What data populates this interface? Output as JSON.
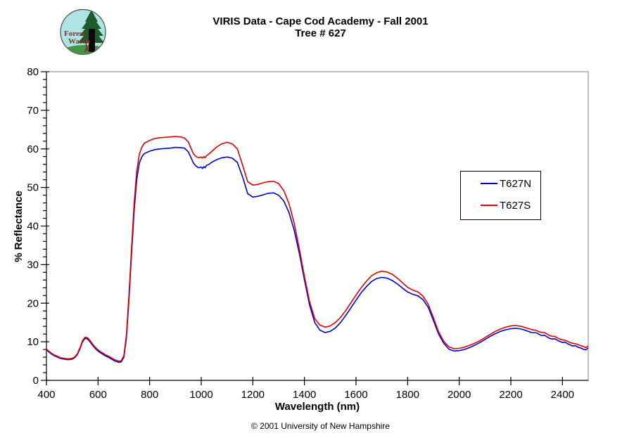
{
  "header": {
    "title_line1": "VIRIS Data - Cape Cod Academy - Fall 2001",
    "title_line2": "Tree # 627"
  },
  "logo": {
    "text_line1": "Forest",
    "text_line2": "Watch",
    "bg_color": "#aee4e4",
    "tree_color": "#1e5b2d",
    "trunk_color": "#0a0a0a",
    "ground_color": "#49924a",
    "text_color": "#8b3222"
  },
  "footer": {
    "copyright": "© 2001 University of New Hampshire"
  },
  "chart_data": {
    "type": "line",
    "title": "VIRIS Data - Cape Cod Academy - Fall 2001 / Tree # 627",
    "xlabel": "Wavelength (nm)",
    "ylabel": "% Reflectance",
    "xlim": [
      400,
      2500
    ],
    "ylim": [
      0,
      80
    ],
    "x_ticks": [
      400,
      600,
      800,
      1000,
      1200,
      1400,
      1600,
      1800,
      2000,
      2200,
      2400
    ],
    "y_ticks": [
      0,
      10,
      20,
      30,
      40,
      50,
      60,
      70,
      80
    ],
    "y_minor_step": 2,
    "grid": false,
    "legend_position": "right-middle",
    "frame_color": "#808080",
    "axis_color": "#000000",
    "x": [
      400,
      410,
      420,
      430,
      440,
      450,
      460,
      470,
      480,
      490,
      500,
      510,
      520,
      530,
      540,
      550,
      560,
      570,
      580,
      590,
      600,
      610,
      620,
      630,
      640,
      650,
      660,
      670,
      680,
      690,
      700,
      710,
      720,
      730,
      740,
      750,
      760,
      770,
      780,
      800,
      820,
      840,
      860,
      880,
      900,
      920,
      935,
      950,
      960,
      970,
      980,
      990,
      1000,
      1005,
      1010,
      1015,
      1020,
      1030,
      1040,
      1060,
      1080,
      1100,
      1120,
      1140,
      1160,
      1180,
      1200,
      1220,
      1240,
      1260,
      1280,
      1300,
      1320,
      1340,
      1360,
      1380,
      1400,
      1420,
      1440,
      1460,
      1480,
      1500,
      1520,
      1540,
      1560,
      1580,
      1600,
      1620,
      1640,
      1660,
      1680,
      1700,
      1720,
      1740,
      1760,
      1780,
      1800,
      1820,
      1840,
      1860,
      1880,
      1900,
      1920,
      1940,
      1960,
      1980,
      2000,
      2020,
      2040,
      2060,
      2080,
      2100,
      2120,
      2140,
      2160,
      2180,
      2200,
      2220,
      2240,
      2260,
      2280,
      2300,
      2310,
      2320,
      2330,
      2340,
      2350,
      2360,
      2370,
      2380,
      2390,
      2400,
      2410,
      2420,
      2430,
      2440,
      2450,
      2460,
      2470,
      2480,
      2490,
      2500
    ],
    "series": [
      {
        "name": "T627N",
        "color": "#0000cc",
        "values": [
          7.9,
          7.3,
          6.8,
          6.4,
          6.1,
          5.8,
          5.6,
          5.5,
          5.4,
          5.4,
          5.5,
          5.9,
          6.7,
          8.2,
          10.0,
          10.9,
          10.7,
          9.9,
          9.0,
          8.2,
          7.6,
          7.1,
          6.7,
          6.3,
          6.0,
          5.6,
          5.2,
          4.9,
          4.7,
          4.8,
          6.0,
          11.0,
          21.0,
          33.0,
          44.0,
          52.0,
          56.3,
          58.0,
          58.8,
          59.4,
          59.8,
          60.0,
          60.1,
          60.2,
          60.4,
          60.3,
          60.2,
          59.2,
          57.8,
          56.3,
          55.5,
          55.1,
          55.3,
          54.9,
          55.4,
          55.1,
          55.7,
          56.0,
          56.5,
          57.2,
          57.7,
          57.9,
          57.6,
          56.5,
          52.8,
          48.4,
          47.5,
          47.7,
          48.1,
          48.5,
          48.6,
          48.0,
          46.5,
          43.5,
          39.0,
          33.0,
          26.0,
          19.5,
          15.0,
          13.0,
          12.4,
          12.7,
          13.6,
          15.0,
          16.8,
          18.8,
          20.8,
          22.7,
          24.3,
          25.6,
          26.4,
          26.7,
          26.5,
          25.9,
          25.0,
          23.9,
          22.9,
          22.3,
          21.9,
          20.9,
          18.9,
          15.5,
          12.0,
          9.6,
          8.1,
          7.6,
          7.7,
          8.0,
          8.5,
          9.1,
          9.8,
          10.6,
          11.4,
          12.1,
          12.7,
          13.1,
          13.4,
          13.5,
          13.3,
          12.9,
          12.4,
          12.3,
          11.9,
          11.6,
          11.7,
          11.3,
          10.9,
          10.7,
          10.8,
          10.4,
          10.1,
          9.8,
          9.9,
          9.5,
          9.2,
          8.9,
          9.0,
          8.6,
          8.4,
          8.1,
          7.9,
          8.4
        ]
      },
      {
        "name": "T627S",
        "color": "#dd0000",
        "values": [
          8.1,
          7.5,
          7.0,
          6.6,
          6.3,
          6.0,
          5.8,
          5.7,
          5.6,
          5.6,
          5.7,
          6.1,
          6.9,
          8.5,
          10.3,
          11.2,
          11.0,
          10.2,
          9.3,
          8.5,
          7.9,
          7.4,
          7.0,
          6.6,
          6.3,
          5.9,
          5.5,
          5.2,
          5.0,
          5.1,
          6.4,
          11.8,
          22.2,
          34.5,
          46.0,
          54.2,
          58.6,
          60.5,
          61.5,
          62.2,
          62.7,
          62.9,
          63.0,
          63.1,
          63.2,
          63.1,
          62.8,
          61.8,
          60.2,
          58.7,
          58.0,
          57.7,
          57.9,
          57.6,
          58.0,
          57.7,
          58.2,
          58.7,
          59.3,
          60.5,
          61.3,
          61.7,
          61.3,
          60.0,
          55.8,
          51.5,
          50.6,
          50.8,
          51.2,
          51.5,
          51.6,
          51.0,
          49.2,
          45.8,
          40.8,
          34.2,
          26.9,
          20.4,
          16.0,
          14.3,
          13.8,
          14.1,
          15.0,
          16.3,
          18.1,
          20.1,
          22.1,
          24.0,
          25.7,
          27.1,
          27.9,
          28.3,
          28.1,
          27.5,
          26.5,
          25.3,
          24.1,
          23.4,
          22.9,
          21.8,
          19.7,
          16.2,
          12.6,
          10.1,
          8.7,
          8.2,
          8.3,
          8.6,
          9.1,
          9.6,
          10.3,
          11.1,
          11.9,
          12.7,
          13.3,
          13.8,
          14.1,
          14.2,
          14.0,
          13.6,
          13.2,
          12.9,
          12.6,
          12.4,
          12.4,
          12.0,
          11.6,
          11.4,
          11.4,
          11.0,
          10.7,
          10.5,
          10.4,
          10.1,
          9.8,
          9.6,
          9.5,
          9.3,
          9.0,
          8.8,
          8.5,
          8.9
        ]
      }
    ]
  }
}
